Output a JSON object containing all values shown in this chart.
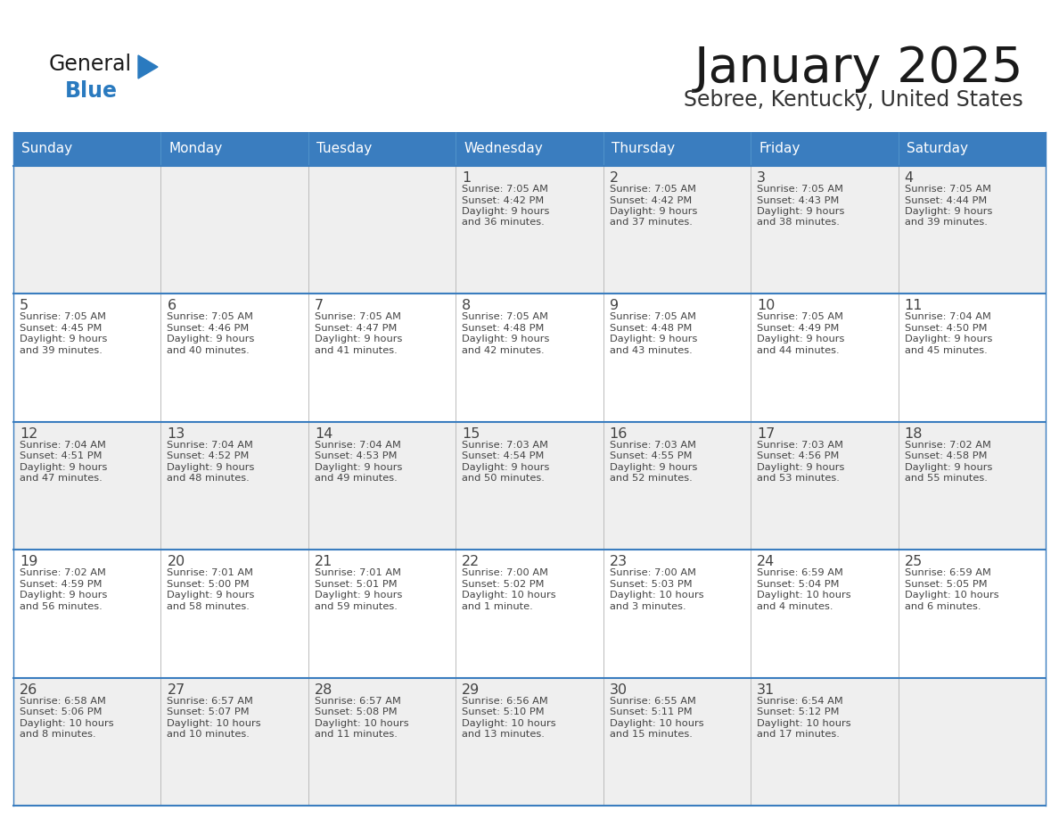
{
  "title": "January 2025",
  "subtitle": "Sebree, Kentucky, United States",
  "days_of_week": [
    "Sunday",
    "Monday",
    "Tuesday",
    "Wednesday",
    "Thursday",
    "Friday",
    "Saturday"
  ],
  "header_bg": "#3a7dbf",
  "header_text": "#ffffff",
  "cell_bg_gray": "#efefef",
  "cell_bg_white": "#ffffff",
  "line_color": "#3a7dbf",
  "text_color": "#444444",
  "title_color": "#1a1a1a",
  "subtitle_color": "#333333",
  "logo_general_color": "#1a1a1a",
  "logo_blue_color": "#2a7abf",
  "logo_triangle_color": "#2a7abf",
  "calendar_data": [
    [
      {
        "day": "",
        "sunrise": "",
        "sunset": "",
        "daylight": ""
      },
      {
        "day": "",
        "sunrise": "",
        "sunset": "",
        "daylight": ""
      },
      {
        "day": "",
        "sunrise": "",
        "sunset": "",
        "daylight": ""
      },
      {
        "day": "1",
        "sunrise": "7:05 AM",
        "sunset": "4:42 PM",
        "daylight": "9 hours and 36 minutes."
      },
      {
        "day": "2",
        "sunrise": "7:05 AM",
        "sunset": "4:42 PM",
        "daylight": "9 hours and 37 minutes."
      },
      {
        "day": "3",
        "sunrise": "7:05 AM",
        "sunset": "4:43 PM",
        "daylight": "9 hours and 38 minutes."
      },
      {
        "day": "4",
        "sunrise": "7:05 AM",
        "sunset": "4:44 PM",
        "daylight": "9 hours and 39 minutes."
      }
    ],
    [
      {
        "day": "5",
        "sunrise": "7:05 AM",
        "sunset": "4:45 PM",
        "daylight": "9 hours and 39 minutes."
      },
      {
        "day": "6",
        "sunrise": "7:05 AM",
        "sunset": "4:46 PM",
        "daylight": "9 hours and 40 minutes."
      },
      {
        "day": "7",
        "sunrise": "7:05 AM",
        "sunset": "4:47 PM",
        "daylight": "9 hours and 41 minutes."
      },
      {
        "day": "8",
        "sunrise": "7:05 AM",
        "sunset": "4:48 PM",
        "daylight": "9 hours and 42 minutes."
      },
      {
        "day": "9",
        "sunrise": "7:05 AM",
        "sunset": "4:48 PM",
        "daylight": "9 hours and 43 minutes."
      },
      {
        "day": "10",
        "sunrise": "7:05 AM",
        "sunset": "4:49 PM",
        "daylight": "9 hours and 44 minutes."
      },
      {
        "day": "11",
        "sunrise": "7:04 AM",
        "sunset": "4:50 PM",
        "daylight": "9 hours and 45 minutes."
      }
    ],
    [
      {
        "day": "12",
        "sunrise": "7:04 AM",
        "sunset": "4:51 PM",
        "daylight": "9 hours and 47 minutes."
      },
      {
        "day": "13",
        "sunrise": "7:04 AM",
        "sunset": "4:52 PM",
        "daylight": "9 hours and 48 minutes."
      },
      {
        "day": "14",
        "sunrise": "7:04 AM",
        "sunset": "4:53 PM",
        "daylight": "9 hours and 49 minutes."
      },
      {
        "day": "15",
        "sunrise": "7:03 AM",
        "sunset": "4:54 PM",
        "daylight": "9 hours and 50 minutes."
      },
      {
        "day": "16",
        "sunrise": "7:03 AM",
        "sunset": "4:55 PM",
        "daylight": "9 hours and 52 minutes."
      },
      {
        "day": "17",
        "sunrise": "7:03 AM",
        "sunset": "4:56 PM",
        "daylight": "9 hours and 53 minutes."
      },
      {
        "day": "18",
        "sunrise": "7:02 AM",
        "sunset": "4:58 PM",
        "daylight": "9 hours and 55 minutes."
      }
    ],
    [
      {
        "day": "19",
        "sunrise": "7:02 AM",
        "sunset": "4:59 PM",
        "daylight": "9 hours and 56 minutes."
      },
      {
        "day": "20",
        "sunrise": "7:01 AM",
        "sunset": "5:00 PM",
        "daylight": "9 hours and 58 minutes."
      },
      {
        "day": "21",
        "sunrise": "7:01 AM",
        "sunset": "5:01 PM",
        "daylight": "9 hours and 59 minutes."
      },
      {
        "day": "22",
        "sunrise": "7:00 AM",
        "sunset": "5:02 PM",
        "daylight": "10 hours and 1 minute."
      },
      {
        "day": "23",
        "sunrise": "7:00 AM",
        "sunset": "5:03 PM",
        "daylight": "10 hours and 3 minutes."
      },
      {
        "day": "24",
        "sunrise": "6:59 AM",
        "sunset": "5:04 PM",
        "daylight": "10 hours and 4 minutes."
      },
      {
        "day": "25",
        "sunrise": "6:59 AM",
        "sunset": "5:05 PM",
        "daylight": "10 hours and 6 minutes."
      }
    ],
    [
      {
        "day": "26",
        "sunrise": "6:58 AM",
        "sunset": "5:06 PM",
        "daylight": "10 hours and 8 minutes."
      },
      {
        "day": "27",
        "sunrise": "6:57 AM",
        "sunset": "5:07 PM",
        "daylight": "10 hours and 10 minutes."
      },
      {
        "day": "28",
        "sunrise": "6:57 AM",
        "sunset": "5:08 PM",
        "daylight": "10 hours and 11 minutes."
      },
      {
        "day": "29",
        "sunrise": "6:56 AM",
        "sunset": "5:10 PM",
        "daylight": "10 hours and 13 minutes."
      },
      {
        "day": "30",
        "sunrise": "6:55 AM",
        "sunset": "5:11 PM",
        "daylight": "10 hours and 15 minutes."
      },
      {
        "day": "31",
        "sunrise": "6:54 AM",
        "sunset": "5:12 PM",
        "daylight": "10 hours and 17 minutes."
      },
      {
        "day": "",
        "sunrise": "",
        "sunset": "",
        "daylight": ""
      }
    ]
  ]
}
